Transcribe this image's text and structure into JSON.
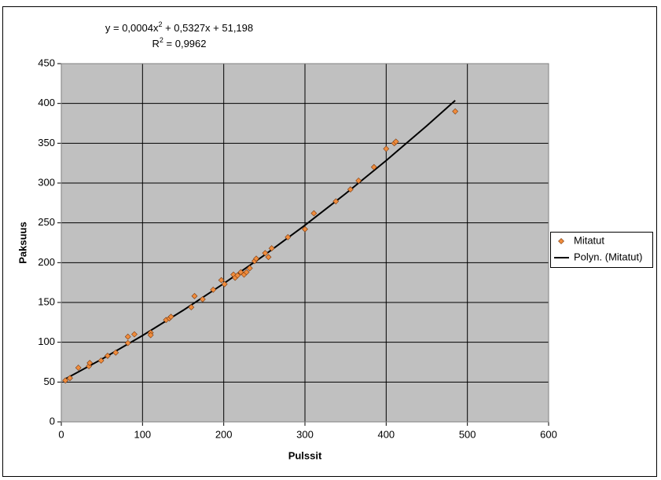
{
  "chart_data": {
    "type": "scatter",
    "equation": {
      "before": "y = 0,0004x",
      "sup": "2",
      "after": " + 0,5327x + 51,198"
    },
    "r_squared": {
      "before": "R",
      "sup": "2",
      "after": " = 0,9962"
    },
    "x_label": "Pulssit",
    "y_label": "Paksuus",
    "xlim": [
      0,
      600
    ],
    "xticks": [
      0,
      100,
      200,
      300,
      400,
      500,
      600
    ],
    "ylim": [
      0,
      450
    ],
    "yticks": [
      0,
      50,
      100,
      150,
      200,
      250,
      300,
      350,
      400,
      450
    ],
    "grid": true,
    "legend_position": "right",
    "series": [
      {
        "name": "Mitatut",
        "color": "#f08c3c",
        "x": [
          5,
          10.6,
          21,
          34,
          35,
          49,
          57,
          67,
          82,
          82,
          90,
          110,
          110,
          129,
          133,
          135,
          160,
          164,
          174,
          187,
          197,
          201,
          212,
          214,
          217,
          221,
          225,
          228,
          232,
          238,
          240,
          251,
          255,
          259,
          279,
          300,
          311,
          338,
          356,
          366,
          385,
          400,
          410,
          412,
          485
        ],
        "values": [
          52,
          55,
          68,
          70,
          74,
          77,
          83,
          87,
          99,
          107,
          110,
          112,
          109,
          128,
          130,
          132,
          144,
          158,
          154,
          166,
          178,
          173,
          185,
          181,
          184,
          188,
          185,
          188,
          193,
          202,
          205,
          212,
          207,
          218,
          232,
          242,
          262,
          277,
          292,
          303,
          320,
          343,
          350,
          352,
          390
        ]
      }
    ],
    "trendline": {
      "name": "Polyn. (Mitatut)",
      "color": "#000000",
      "x": [
        5,
        50,
        100,
        150,
        200,
        250,
        300,
        350,
        400,
        450,
        485
      ],
      "values": [
        53.87,
        78.83,
        108.47,
        140.1,
        173.74,
        209.38,
        247.01,
        286.65,
        328.28,
        371.92,
        403.7
      ]
    }
  }
}
